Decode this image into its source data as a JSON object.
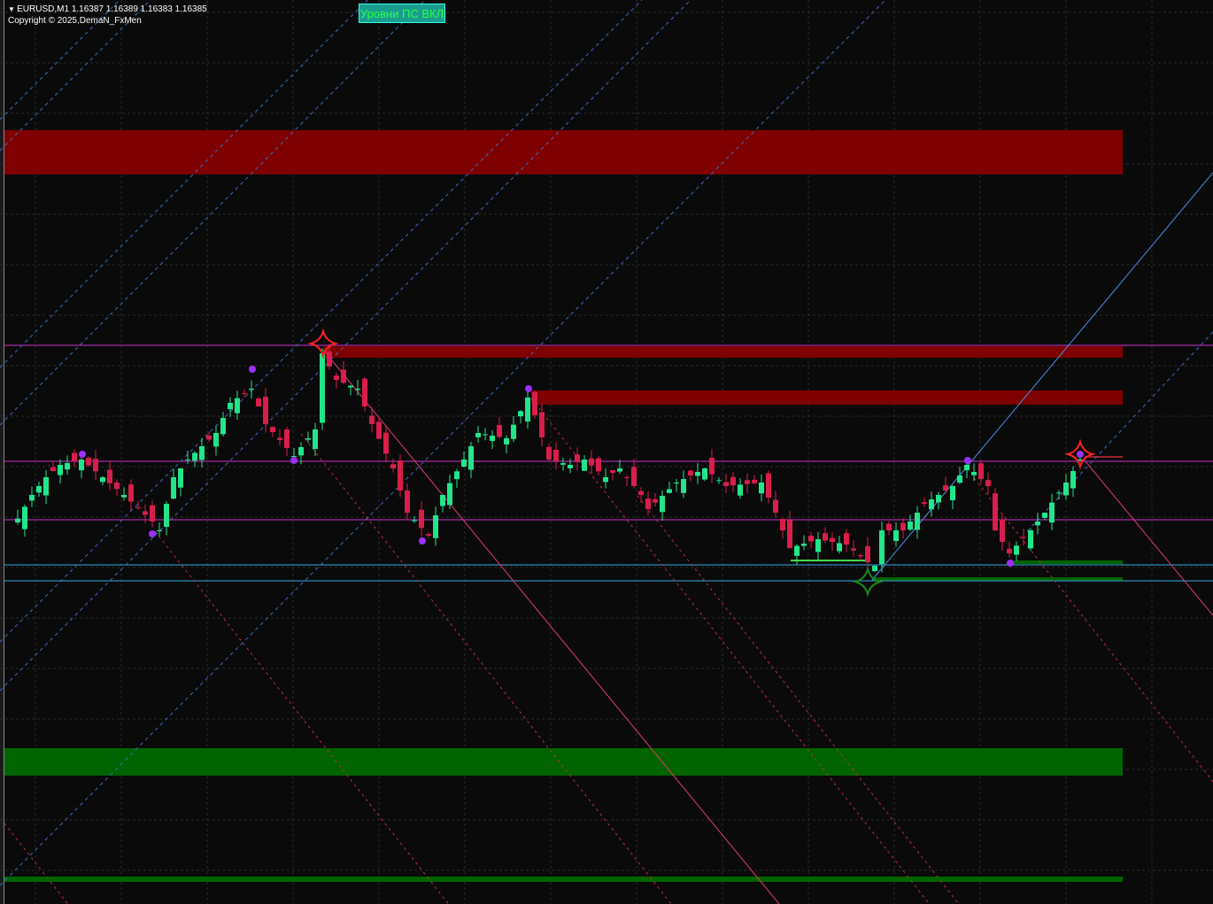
{
  "header": {
    "symbol_line": "EURUSD,M1  1.16387 1.16389 1.16383 1.16385",
    "copyright": "Copyright © 2025,DemaN_FxMen",
    "menu_icon": "triangle-down-icon"
  },
  "button": {
    "label": "Уровни ПС ВКЛ"
  },
  "colors": {
    "background": "#0a0a0a",
    "bull": "#22e58a",
    "bear": "#d81e4a",
    "resistance_zone": "#7f0000",
    "support_zone": "#006400",
    "level_line": "#cc33cc",
    "cyan_line": "#33aadd",
    "pivot_dot": "#9b30ff",
    "star_high": "#ff2020",
    "star_low": "#1a8a1a"
  },
  "chart_data": {
    "type": "candlestick",
    "symbol": "EURUSD",
    "timeframe": "M1",
    "last_ohlc": {
      "open": 1.16387,
      "high": 1.16389,
      "low": 1.16383,
      "close": 1.16385
    },
    "close_path": [
      [
        0,
        1.16346
      ],
      [
        3,
        1.16366
      ],
      [
        5,
        1.16376
      ],
      [
        7,
        1.16383
      ],
      [
        10,
        1.16386
      ],
      [
        13,
        1.16376
      ],
      [
        16,
        1.16366
      ],
      [
        20,
        1.16351
      ],
      [
        21,
        1.16346
      ],
      [
        23,
        1.16376
      ],
      [
        25,
        1.16386
      ],
      [
        29,
        1.16401
      ],
      [
        31,
        1.16418
      ],
      [
        34,
        1.16426
      ],
      [
        36,
        1.16406
      ],
      [
        40,
        1.16388
      ],
      [
        43,
        1.16403
      ],
      [
        44,
        1.16446
      ],
      [
        46,
        1.16431
      ],
      [
        49,
        1.16426
      ],
      [
        51,
        1.16406
      ],
      [
        54,
        1.16381
      ],
      [
        56,
        1.16356
      ],
      [
        59,
        1.16343
      ],
      [
        61,
        1.16366
      ],
      [
        64,
        1.16386
      ],
      [
        66,
        1.16401
      ],
      [
        70,
        1.16398
      ],
      [
        73,
        1.16421
      ],
      [
        74,
        1.16411
      ],
      [
        76,
        1.16386
      ],
      [
        79,
        1.16383
      ],
      [
        81,
        1.16386
      ],
      [
        84,
        1.16376
      ],
      [
        86,
        1.16381
      ],
      [
        89,
        1.16366
      ],
      [
        90,
        1.16358
      ],
      [
        94,
        1.16373
      ],
      [
        98,
        1.16381
      ],
      [
        101,
        1.16371
      ],
      [
        106,
        1.16373
      ],
      [
        108,
        1.16356
      ],
      [
        110,
        1.16336
      ],
      [
        114,
        1.16341
      ],
      [
        118,
        1.16338
      ],
      [
        121,
        1.16328
      ],
      [
        122,
        1.16326
      ],
      [
        123,
        1.16346
      ],
      [
        126,
        1.16346
      ],
      [
        129,
        1.16361
      ],
      [
        133,
        1.16371
      ],
      [
        135,
        1.16383
      ],
      [
        138,
        1.16371
      ],
      [
        139,
        1.16346
      ],
      [
        141,
        1.16333
      ],
      [
        144,
        1.16346
      ],
      [
        146,
        1.16356
      ],
      [
        149,
        1.16373
      ],
      [
        151,
        1.16386
      ]
    ],
    "grid": true
  }
}
